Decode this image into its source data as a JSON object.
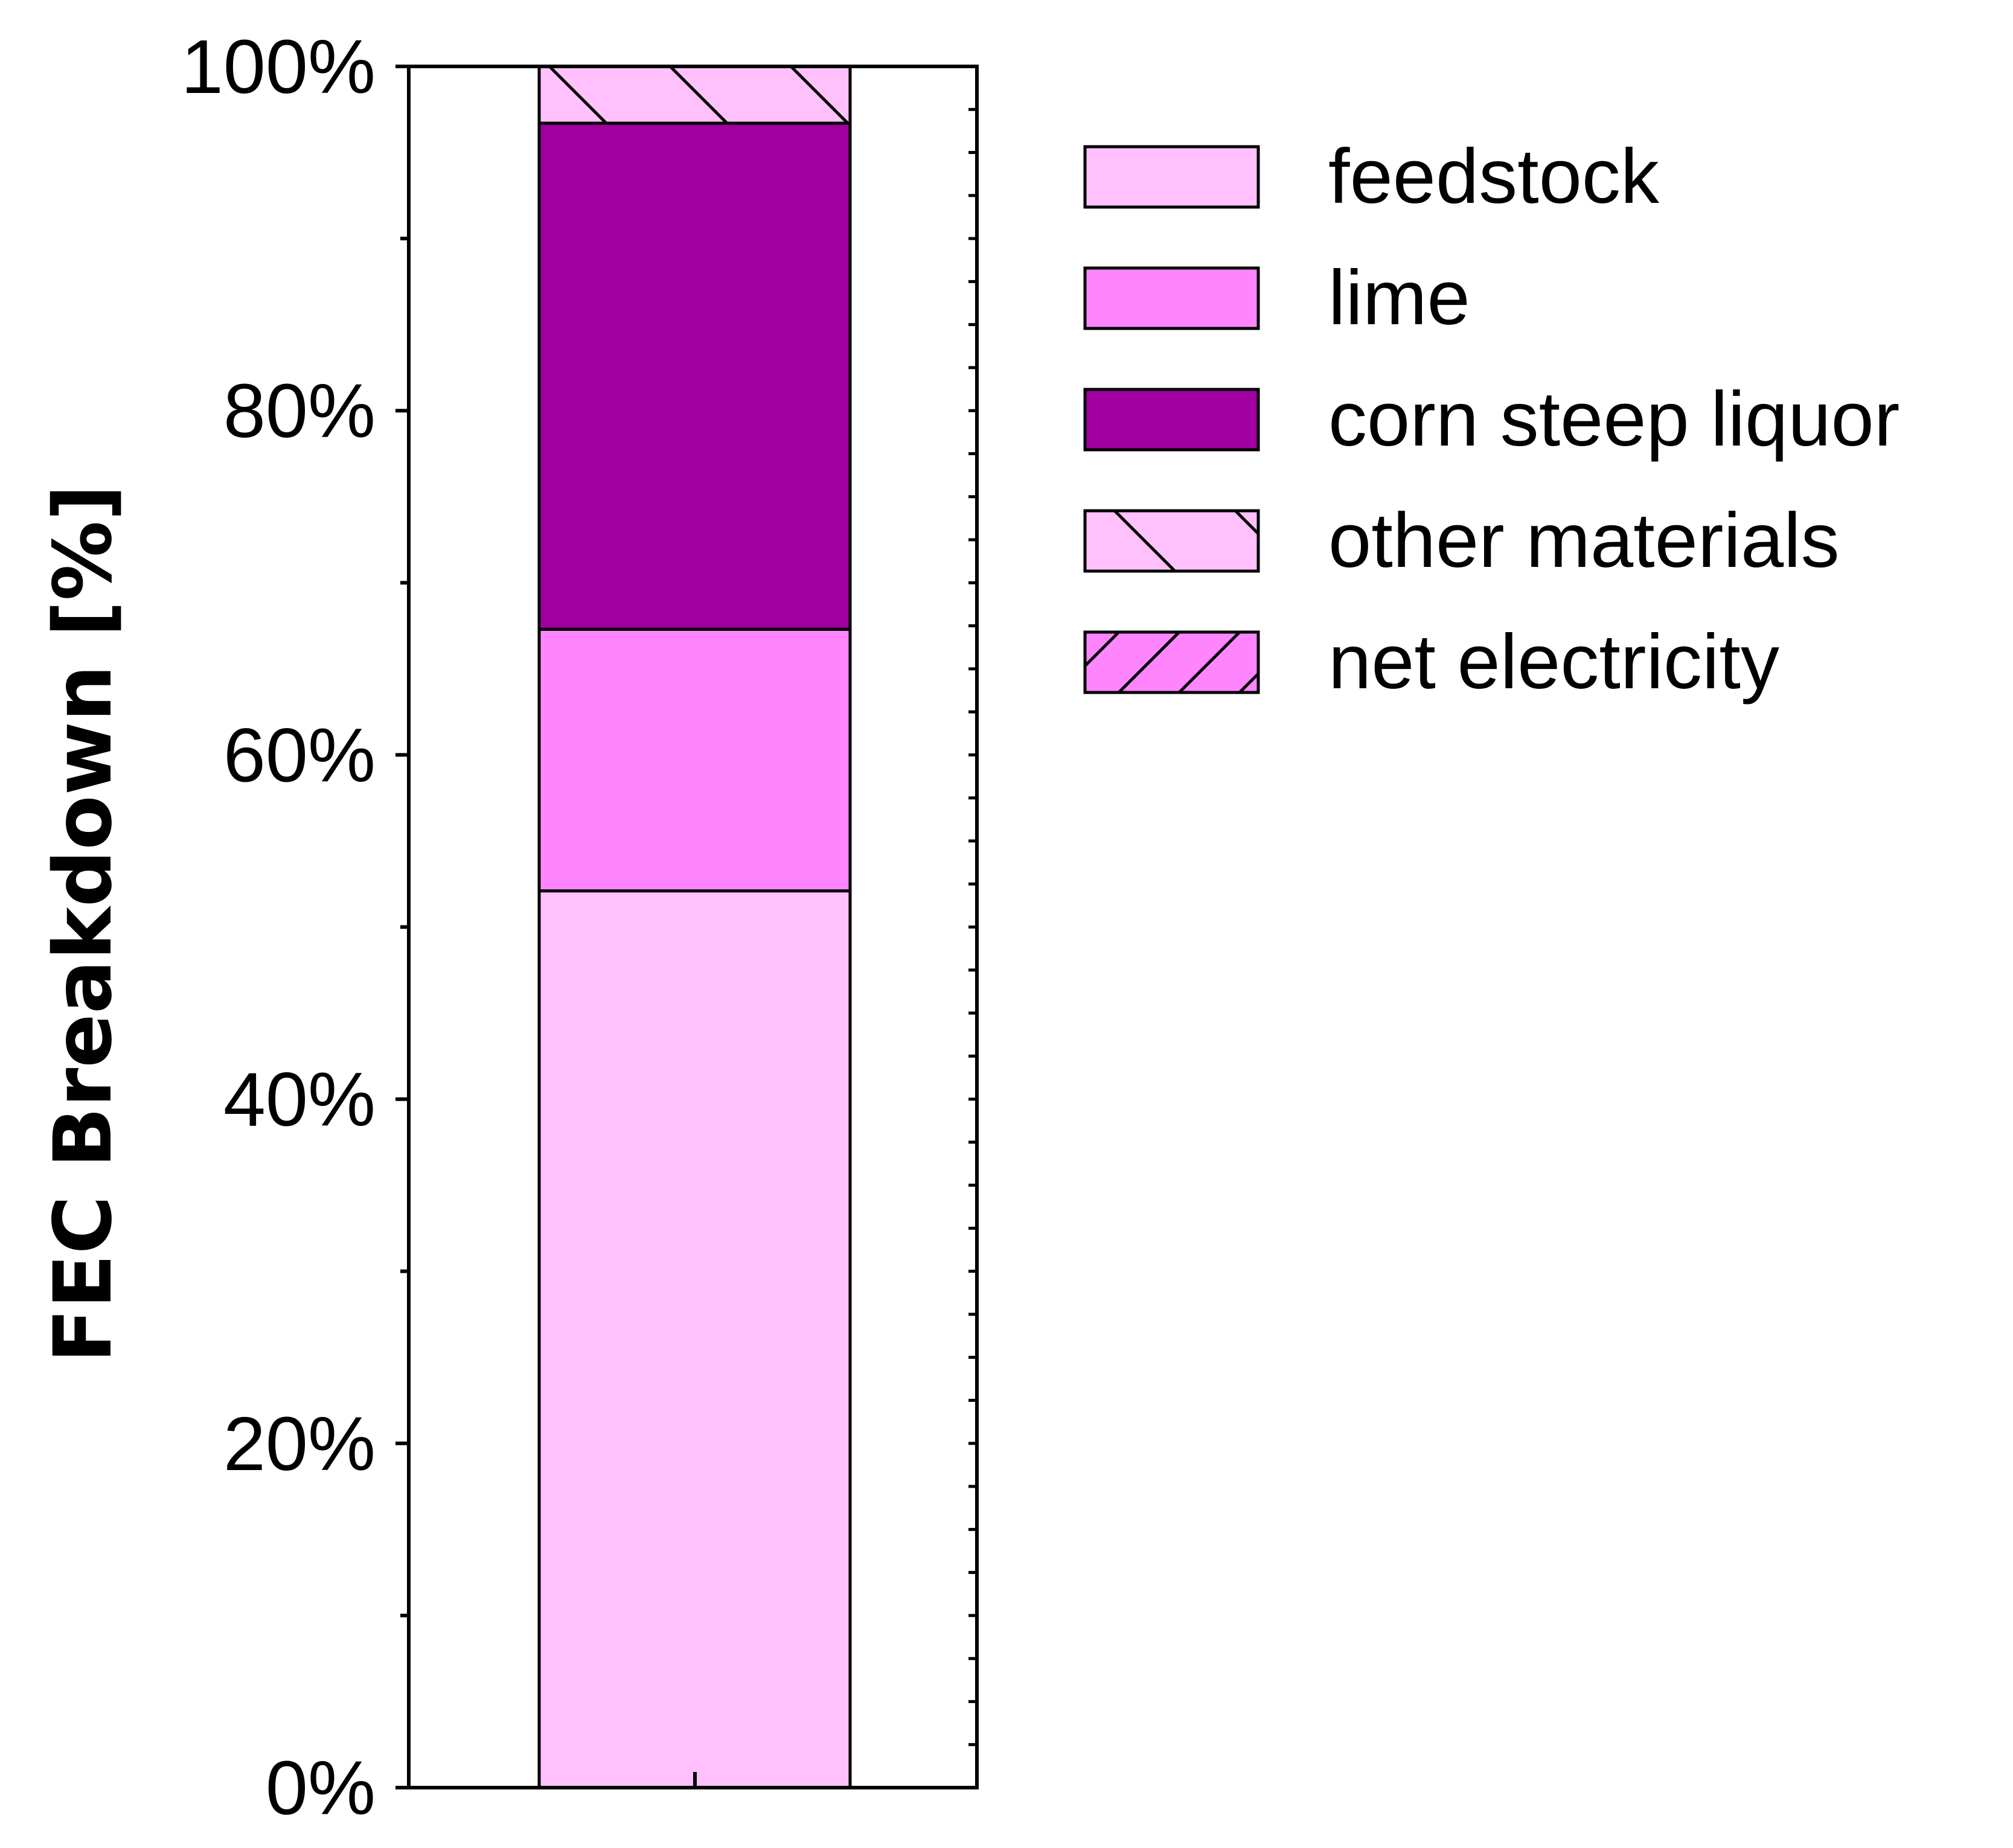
{
  "chart_data": {
    "type": "bar",
    "stacked": true,
    "ylabel": "FEC Breakdown [%]",
    "ylim": [
      0,
      100
    ],
    "yticks": [
      "0%",
      "20%",
      "40%",
      "60%",
      "80%",
      "100%"
    ],
    "series": [
      {
        "name": "feedstock",
        "values": [
          52.1
        ],
        "color": "#FFC0FC",
        "hatch": "none"
      },
      {
        "name": "lime",
        "values": [
          15.2
        ],
        "color": "#FF85FE",
        "hatch": "none"
      },
      {
        "name": "corn steep liquor",
        "values": [
          29.4
        ],
        "color": "#A0009F",
        "hatch": "none"
      },
      {
        "name": "other materials",
        "values": [
          3.3
        ],
        "color": "#FFC0FC",
        "hatch": "backslash"
      },
      {
        "name": "net electricity",
        "values": [
          0.0
        ],
        "color": "#FF85FE",
        "hatch": "slash"
      }
    ],
    "legend": "upper-right",
    "grid": false
  }
}
